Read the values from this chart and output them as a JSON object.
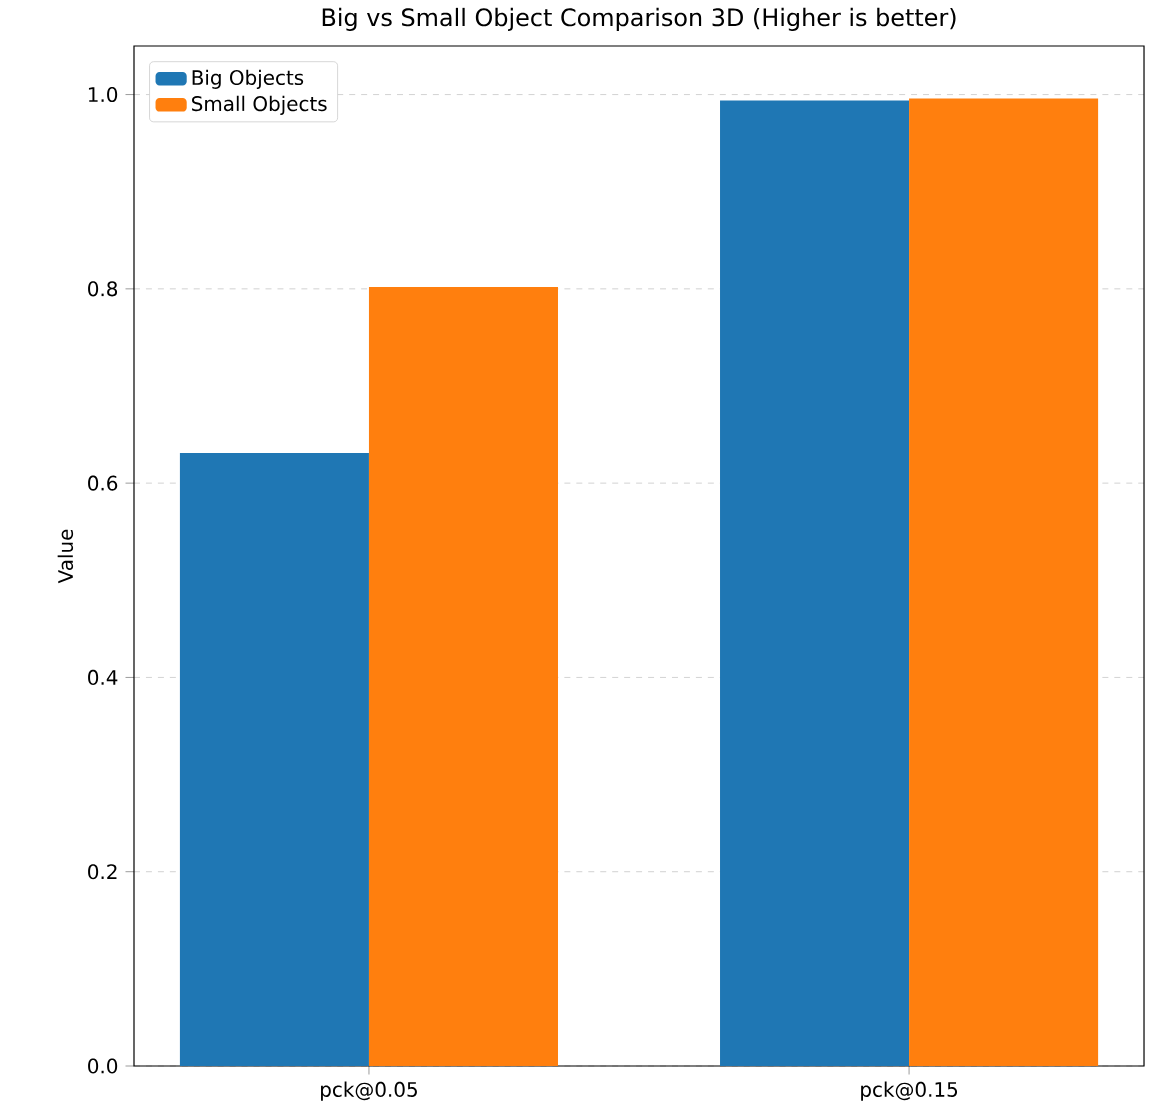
{
  "chart_data": {
    "type": "bar",
    "title": "Big vs Small Object Comparison 3D (Higher is better)",
    "ylabel": "Value",
    "categories": [
      "pck@0.05",
      "pck@0.15"
    ],
    "series": [
      {
        "name": "Big Objects",
        "color": "#1f77b4",
        "values": [
          0.631,
          0.994
        ]
      },
      {
        "name": "Small Objects",
        "color": "#ff7f0e",
        "values": [
          0.802,
          0.996
        ]
      }
    ],
    "ylim": [
      0,
      1.05
    ],
    "yticks": [
      {
        "value": 0,
        "label": "0.0"
      },
      0.2,
      0.4,
      0.6,
      0.8,
      {
        "value": 1,
        "label": "1.0"
      }
    ],
    "grid": "y",
    "legend": "top left"
  }
}
